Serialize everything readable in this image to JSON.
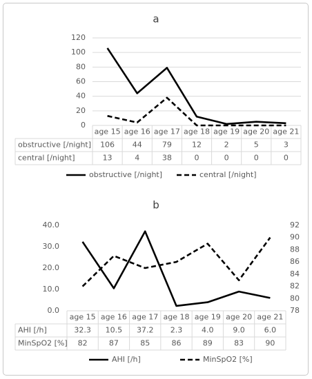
{
  "chart_data": [
    {
      "type": "line",
      "title": "a",
      "categories": [
        "age 15",
        "age 16",
        "age 17",
        "age 18",
        "age 19",
        "age 20",
        "age 21"
      ],
      "ylim": [
        0,
        120
      ],
      "yticks": [
        "0",
        "20",
        "40",
        "60",
        "80",
        "100",
        "120"
      ],
      "grid": true,
      "legend": "bottom",
      "series": [
        {
          "name": "obstructive [/night]",
          "table_label": "obstructive [/night]",
          "values": [
            106,
            44,
            79,
            12,
            2,
            5,
            3
          ],
          "dash": "solid",
          "axis": "left"
        },
        {
          "name": "central [/night]",
          "table_label": "central [/night]",
          "values": [
            13,
            4,
            38,
            0,
            0,
            0,
            0
          ],
          "dash": "dashed",
          "axis": "left"
        }
      ]
    },
    {
      "type": "line",
      "title": "b",
      "categories": [
        "age 15",
        "age 16",
        "age 17",
        "age 18",
        "age 19",
        "age 20",
        "age 21"
      ],
      "ylim": [
        0,
        40
      ],
      "yticks": [
        "0.0",
        "10.0",
        "20.0",
        "30.0",
        "40.0"
      ],
      "y2lim": [
        78,
        92
      ],
      "y2ticks": [
        "78",
        "80",
        "82",
        "84",
        "86",
        "88",
        "90",
        "92"
      ],
      "grid": false,
      "legend": "bottom",
      "series": [
        {
          "name": "AHI [/h]",
          "table_label": "AHI [/h]",
          "values": [
            32.3,
            10.5,
            37.2,
            2.3,
            4.0,
            9.0,
            6.0
          ],
          "display": [
            "32.3",
            "10.5",
            "37.2",
            "2.3",
            "4.0",
            "9.0",
            "6.0"
          ],
          "dash": "solid",
          "axis": "left"
        },
        {
          "name": "MinSpO2 [%]",
          "table_label": "MinSpO2 [%]",
          "values": [
            82,
            87,
            85,
            86,
            89,
            83,
            90
          ],
          "display": [
            "82",
            "87",
            "85",
            "86",
            "89",
            "83",
            "90"
          ],
          "dash": "dashed",
          "axis": "right"
        }
      ]
    }
  ]
}
